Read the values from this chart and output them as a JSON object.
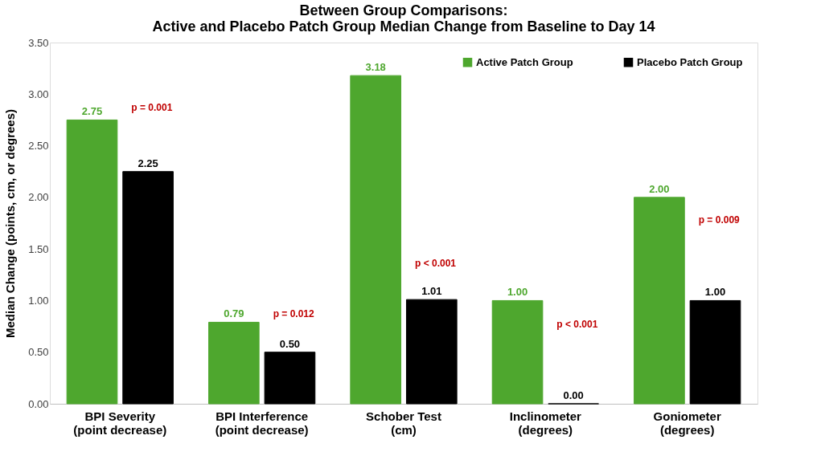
{
  "chart_data": {
    "type": "bar",
    "title": "Between Group Comparisons:\nActive and Placebo Patch Group Median Change from Baseline to Day 14",
    "ylabel": "Median Change (points, cm, or degrees)",
    "categories": [
      "BPI Severity\n(point decrease)",
      "BPI Interference\n(point decrease)",
      "Schober Test\n(cm)",
      "Inclinometer\n(degrees)",
      "Goniometer\n(degrees)"
    ],
    "series": [
      {
        "name": "Active Patch Group",
        "color": "#4ea72e",
        "values": [
          2.75,
          0.79,
          3.18,
          1.0,
          2.0
        ],
        "value_labels": [
          "2.75",
          "0.79",
          "3.18",
          "1.00",
          "2.00"
        ]
      },
      {
        "name": "Placebo Patch Group",
        "color": "#000000",
        "values": [
          2.25,
          0.5,
          1.01,
          0.0,
          1.0
        ],
        "value_labels": [
          "2.25",
          "0.50",
          "1.01",
          "0.00",
          "1.00"
        ]
      }
    ],
    "ylim": [
      0,
      3.5
    ],
    "yticks": [
      {
        "value": 0,
        "label": "0.00"
      },
      {
        "value": 0.5,
        "label": "0.50"
      },
      {
        "value": 1,
        "label": "1.00"
      },
      {
        "value": 1.5,
        "label": "1.50"
      },
      {
        "value": 2,
        "label": "2.00"
      },
      {
        "value": 2.5,
        "label": "2.50"
      },
      {
        "value": 3,
        "label": "3.00"
      },
      {
        "value": 3.5,
        "label": "3.50"
      }
    ],
    "grid": false,
    "legend": "top right",
    "annotations": [
      "p = 0.001",
      "p = 0.012",
      "p < 0.001",
      "p < 0.001",
      "p = 0.009"
    ]
  }
}
